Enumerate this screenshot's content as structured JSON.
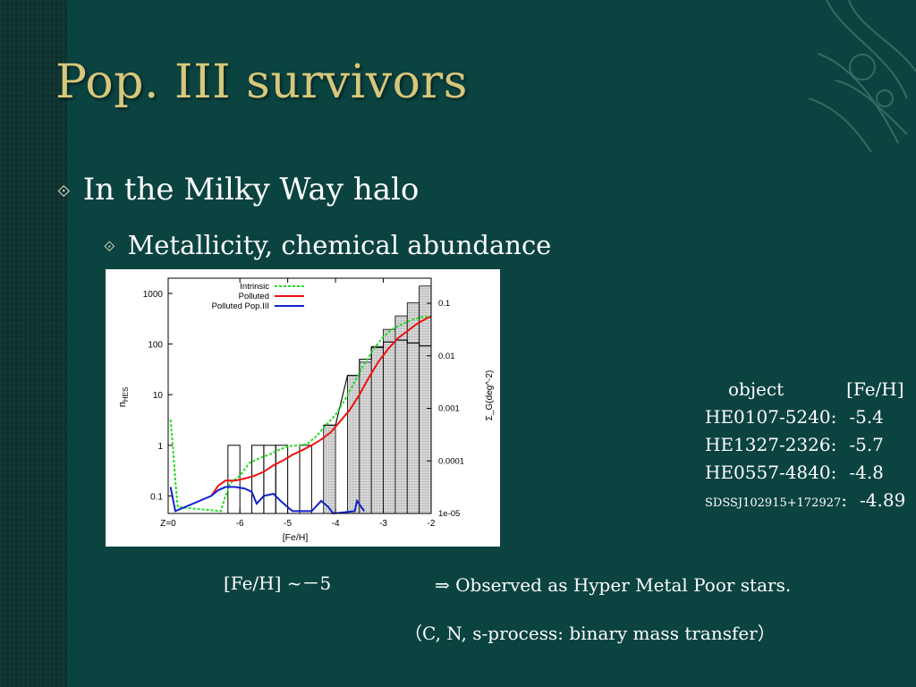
{
  "slide": {
    "title": "Pop. III survivors",
    "bullet1": "In the Milky Way halo",
    "bullet2": "Metallicity, chemical abundance",
    "bullet_marker": "⟐"
  },
  "objects": {
    "header_object": "object",
    "header_feh": "[Fe/H]",
    "rows": [
      {
        "name": "HE0107-5240:",
        "feh": "-5.4"
      },
      {
        "name": "HE1327-2326:",
        "feh": "-5.7"
      },
      {
        "name": "HE0557-4840:",
        "feh": "-4.8"
      },
      {
        "name": "SDSSJ102915+172927",
        "sep": ":",
        "feh": "-4.89"
      }
    ]
  },
  "captions": {
    "feh_note": "[Fe/H] ~－5",
    "observed": "⇒ Observed as Hyper Metal Poor stars.",
    "process": "（C, N, s-process:  binary mass transfer）"
  },
  "colors": {
    "background": "#0b4340",
    "title": "#d7c77c",
    "intrinsic": "#22dd22",
    "polluted": "#ee1111",
    "polluted_pop3": "#1122cc"
  },
  "chart_data": {
    "type": "line",
    "xlabel": "[Fe/H]",
    "ylabel": "n_HES",
    "ylabel_main": "n",
    "ylabel_sub": "HES",
    "y2label": "Σ_G(deg^-2)",
    "xlim": [
      -7.5,
      -2
    ],
    "ylim": [
      0.045,
      2000
    ],
    "yscale": "log",
    "y2lim": [
      1e-05,
      0.3
    ],
    "x_ticks": [
      {
        "v": -7.5,
        "label": "Z=0"
      },
      {
        "v": -6,
        "label": "-6"
      },
      {
        "v": -5,
        "label": "-5"
      },
      {
        "v": -4,
        "label": "-4"
      },
      {
        "v": -3,
        "label": "-3"
      },
      {
        "v": -2,
        "label": "-2"
      }
    ],
    "y_ticks": [
      {
        "v": 0.1,
        "label": "0.1"
      },
      {
        "v": 1,
        "label": "1"
      },
      {
        "v": 10,
        "label": "10"
      },
      {
        "v": 100,
        "label": "100"
      },
      {
        "v": 1000,
        "label": "1000"
      }
    ],
    "y2_ticks": [
      {
        "v": 1e-05,
        "label": "1e-05"
      },
      {
        "v": 0.0001,
        "label": "0.0001"
      },
      {
        "v": 0.001,
        "label": "0.001"
      },
      {
        "v": 0.01,
        "label": "0.01"
      },
      {
        "v": 0.1,
        "label": "0.1"
      }
    ],
    "legend": "top-left",
    "histogram_open": [
      {
        "x0": -6.25,
        "x1": -6.0,
        "v": 1
      },
      {
        "x0": -5.75,
        "x1": -5.5,
        "v": 1
      },
      {
        "x0": -5.5,
        "x1": -5.25,
        "v": 1
      },
      {
        "x0": -5.25,
        "x1": -5.0,
        "v": 1
      },
      {
        "x0": -4.75,
        "x1": -4.5,
        "v": 1
      }
    ],
    "histogram_filled": [
      {
        "x0": -4.25,
        "x1": -4.0,
        "v": 2.5
      },
      {
        "x0": -3.75,
        "x1": -3.5,
        "v": 24
      },
      {
        "x0": -3.5,
        "x1": -3.25,
        "v": 44
      },
      {
        "x0": -3.25,
        "x1": -3.0,
        "v": 90
      },
      {
        "x0": -3.0,
        "x1": -2.75,
        "v": 195
      },
      {
        "x0": -2.75,
        "x1": -2.5,
        "v": 360
      },
      {
        "x0": -2.5,
        "x1": -2.25,
        "v": 650
      },
      {
        "x0": -2.25,
        "x1": -2.0,
        "v": 1400
      }
    ],
    "histogram_outline": [
      {
        "x0": -4.25,
        "x1": -4.0,
        "v": 2.5
      },
      {
        "x0": -3.75,
        "x1": -3.5,
        "v": 24
      },
      {
        "x0": -3.5,
        "x1": -3.25,
        "v": 50
      },
      {
        "x0": -3.25,
        "x1": -3.0,
        "v": 85
      },
      {
        "x0": -3.0,
        "x1": -2.75,
        "v": 110
      },
      {
        "x0": -2.75,
        "x1": -2.5,
        "v": 120
      },
      {
        "x0": -2.5,
        "x1": -2.25,
        "v": 105
      },
      {
        "x0": -2.25,
        "x1": -2.0,
        "v": 92
      }
    ],
    "series": [
      {
        "name": "Intrinsic",
        "color": "#22dd22",
        "dash": true,
        "points": [
          [
            -7.45,
            3.2
          ],
          [
            -7.4,
            0.9
          ],
          [
            -7.35,
            0.2
          ],
          [
            -7.3,
            0.06
          ],
          [
            -6.4,
            0.05
          ],
          [
            -6.3,
            0.1
          ],
          [
            -6.2,
            0.18
          ],
          [
            -6.0,
            0.25
          ],
          [
            -5.8,
            0.45
          ],
          [
            -5.6,
            0.55
          ],
          [
            -5.4,
            0.65
          ],
          [
            -5.2,
            0.8
          ],
          [
            -5.0,
            0.95
          ],
          [
            -4.8,
            1.0
          ],
          [
            -4.6,
            1.05
          ],
          [
            -4.4,
            1.5
          ],
          [
            -4.2,
            2.5
          ],
          [
            -4.0,
            4.0
          ],
          [
            -3.8,
            8
          ],
          [
            -3.6,
            18
          ],
          [
            -3.4,
            40
          ],
          [
            -3.2,
            80
          ],
          [
            -3.0,
            140
          ],
          [
            -2.8,
            200
          ],
          [
            -2.6,
            250
          ],
          [
            -2.4,
            300
          ],
          [
            -2.2,
            340
          ],
          [
            -2.0,
            350
          ]
        ]
      },
      {
        "name": "Polluted",
        "color": "#ee1111",
        "dash": false,
        "points": [
          [
            -6.6,
            0.1
          ],
          [
            -6.45,
            0.16
          ],
          [
            -6.3,
            0.2
          ],
          [
            -6.1,
            0.2
          ],
          [
            -5.9,
            0.22
          ],
          [
            -5.7,
            0.25
          ],
          [
            -5.5,
            0.3
          ],
          [
            -5.3,
            0.4
          ],
          [
            -5.1,
            0.5
          ],
          [
            -4.9,
            0.65
          ],
          [
            -4.7,
            0.8
          ],
          [
            -4.5,
            1.0
          ],
          [
            -4.3,
            1.3
          ],
          [
            -4.1,
            1.8
          ],
          [
            -3.9,
            3
          ],
          [
            -3.7,
            5
          ],
          [
            -3.5,
            10
          ],
          [
            -3.3,
            22
          ],
          [
            -3.1,
            45
          ],
          [
            -2.9,
            80
          ],
          [
            -2.7,
            130
          ],
          [
            -2.5,
            180
          ],
          [
            -2.3,
            250
          ],
          [
            -2.1,
            320
          ],
          [
            -2.0,
            350
          ]
        ]
      },
      {
        "name": "Polluted Pop.III",
        "color": "#1122cc",
        "dash": false,
        "points": [
          [
            -7.45,
            0.15
          ],
          [
            -7.35,
            0.05
          ],
          [
            -6.6,
            0.1
          ],
          [
            -6.45,
            0.13
          ],
          [
            -6.3,
            0.15
          ],
          [
            -6.1,
            0.15
          ],
          [
            -5.9,
            0.14
          ],
          [
            -5.75,
            0.12
          ],
          [
            -5.65,
            0.07
          ],
          [
            -5.5,
            0.1
          ],
          [
            -5.3,
            0.11
          ],
          [
            -5.15,
            0.08
          ],
          [
            -5.0,
            0.06
          ],
          [
            -4.9,
            0.05
          ],
          [
            -4.5,
            0.05
          ],
          [
            -4.3,
            0.08
          ],
          [
            -4.15,
            0.06
          ],
          [
            -4.05,
            0.045
          ],
          [
            -3.6,
            0.05
          ],
          [
            -3.55,
            0.08
          ],
          [
            -3.4,
            0.05
          ]
        ]
      }
    ]
  }
}
